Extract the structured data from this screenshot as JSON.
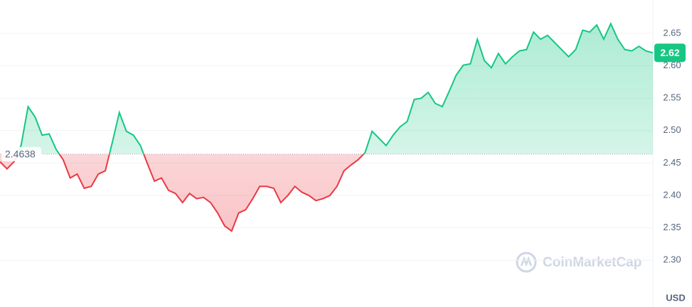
{
  "chart_data": {
    "type": "line",
    "currency": "USD",
    "watermark": "CoinMarketCap",
    "baseline": 2.4638,
    "up_color": "#16c784",
    "down_color": "#ea3943",
    "values": [
      2.452,
      2.441,
      2.452,
      2.477,
      2.537,
      2.521,
      2.493,
      2.495,
      2.471,
      2.455,
      2.427,
      2.433,
      2.411,
      2.414,
      2.433,
      2.438,
      2.482,
      2.528,
      2.499,
      2.493,
      2.477,
      2.449,
      2.422,
      2.427,
      2.408,
      2.403,
      2.389,
      2.403,
      2.395,
      2.397,
      2.389,
      2.373,
      2.353,
      2.345,
      2.373,
      2.378,
      2.395,
      2.414,
      2.414,
      2.411,
      2.389,
      2.4,
      2.414,
      2.405,
      2.4,
      2.392,
      2.395,
      2.4,
      2.414,
      2.438,
      2.447,
      2.455,
      2.466,
      2.499,
      2.488,
      2.477,
      2.493,
      2.506,
      2.514,
      2.548,
      2.55,
      2.559,
      2.542,
      2.537,
      2.561,
      2.586,
      2.601,
      2.603,
      2.641,
      2.608,
      2.597,
      2.619,
      2.603,
      2.614,
      2.623,
      2.625,
      2.652,
      2.641,
      2.647,
      2.636,
      2.625,
      2.614,
      2.625,
      2.655,
      2.652,
      2.663,
      2.641,
      2.665,
      2.641,
      2.625,
      2.623,
      2.63,
      2.623,
      2.62
    ],
    "ylim": [
      2.263,
      2.7015
    ],
    "yticks": [
      {
        "value": 2.3,
        "label": "2.30"
      },
      2.35,
      {
        "value": 2.4,
        "label": "2.40"
      },
      2.45,
      {
        "value": 2.5,
        "label": "2.50"
      },
      2.55,
      {
        "value": 2.6,
        "label": "2.60"
      },
      2.65
    ],
    "grid": true
  }
}
